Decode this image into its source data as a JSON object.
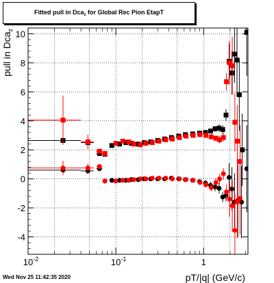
{
  "title": {
    "prefix": "Fitted pull in Dca",
    "subscript": "z",
    "suffix": " for Global Rec Pion EtapT"
  },
  "footer": "Wed Nov 25 11:42:35 2020",
  "chart_data": {
    "type": "scatter",
    "xlabel": "pT/|q| (GeV/c)",
    "ylabel": "pull in Dca",
    "ylabel_subscript": "z",
    "xscale": "log",
    "xlim": [
      0.01,
      3.2
    ],
    "ylim": [
      -5.2,
      10.4
    ],
    "grid": true,
    "x_ticks": [
      {
        "value": 0.01,
        "label": "10",
        "exp": "-2"
      },
      {
        "value": 0.1,
        "label": "10",
        "exp": "-1"
      },
      {
        "value": 1,
        "label": "1",
        "exp": ""
      }
    ],
    "y_ticks": [
      -4,
      -2,
      0,
      2,
      4,
      6,
      8,
      10
    ],
    "series": [
      {
        "color": "#000000",
        "marker": "square",
        "role": "sigma",
        "points": [
          {
            "x": 0.025,
            "y": 2.65,
            "xerr": 0.015,
            "yerr": 0.3
          },
          {
            "x": 0.048,
            "y": 2.5,
            "xerr": 0.008,
            "yerr": 0.2
          },
          {
            "x": 0.065,
            "y": 1.75,
            "xerr": 0.005,
            "yerr": 0.15
          },
          {
            "x": 0.075,
            "y": 1.7,
            "xerr": 0.004,
            "yerr": 0.15
          },
          {
            "x": 0.09,
            "y": 2.3,
            "xerr": 0.004,
            "yerr": 0.1
          },
          {
            "x": 0.11,
            "y": 2.4,
            "xerr": 0.004,
            "yerr": 0.1
          },
          {
            "x": 0.13,
            "y": 2.5,
            "xerr": 0.005,
            "yerr": 0.1
          },
          {
            "x": 0.15,
            "y": 2.45,
            "xerr": 0.005,
            "yerr": 0.1
          },
          {
            "x": 0.18,
            "y": 2.4,
            "xerr": 0.005,
            "yerr": 0.1
          },
          {
            "x": 0.21,
            "y": 2.5,
            "xerr": 0.006,
            "yerr": 0.1
          },
          {
            "x": 0.25,
            "y": 2.55,
            "xerr": 0.008,
            "yerr": 0.1
          },
          {
            "x": 0.3,
            "y": 2.65,
            "xerr": 0.009,
            "yerr": 0.1
          },
          {
            "x": 0.36,
            "y": 2.75,
            "xerr": 0.01,
            "yerr": 0.1
          },
          {
            "x": 0.43,
            "y": 2.85,
            "xerr": 0.012,
            "yerr": 0.1
          },
          {
            "x": 0.52,
            "y": 2.95,
            "xerr": 0.015,
            "yerr": 0.12
          },
          {
            "x": 0.62,
            "y": 3.05,
            "xerr": 0.018,
            "yerr": 0.12
          },
          {
            "x": 0.75,
            "y": 3.1,
            "xerr": 0.02,
            "yerr": 0.12
          },
          {
            "x": 0.9,
            "y": 3.15,
            "xerr": 0.025,
            "yerr": 0.15
          },
          {
            "x": 1.05,
            "y": 3.2,
            "xerr": 0.03,
            "yerr": 0.15
          },
          {
            "x": 1.2,
            "y": 3.3,
            "xerr": 0.03,
            "yerr": 0.15
          },
          {
            "x": 1.35,
            "y": 3.45,
            "xerr": 0.03,
            "yerr": 0.2
          },
          {
            "x": 1.5,
            "y": 3.5,
            "xerr": 0.03,
            "yerr": 0.25
          },
          {
            "x": 1.65,
            "y": 3.4,
            "xerr": 0.03,
            "yerr": 0.3
          },
          {
            "x": 1.8,
            "y": 4.4,
            "xerr": 0.03,
            "yerr": 0.4
          },
          {
            "x": 1.95,
            "y": 8.1,
            "xerr": 0.04,
            "yerr": 1.2
          },
          {
            "x": 2.1,
            "y": 7.3,
            "xerr": 0.05,
            "yerr": 1.5
          },
          {
            "x": 2.25,
            "y": 8.6,
            "xerr": 0.05,
            "yerr": 2.0
          },
          {
            "x": 2.4,
            "y": 8.2,
            "xerr": 0.05,
            "yerr": 2.5
          },
          {
            "x": 2.55,
            "y": 5.8,
            "xerr": 0.05,
            "yerr": 2.5
          },
          {
            "x": 2.75,
            "y": 2.0,
            "xerr": 0.05,
            "yerr": 2.5
          },
          {
            "x": 3.1,
            "y": 10.1,
            "xerr": 0.06,
            "yerr": 3.0
          }
        ]
      },
      {
        "color": "#000000",
        "marker": "circle",
        "role": "mean",
        "points": [
          {
            "x": 0.025,
            "y": 0.6,
            "xerr": 0.015,
            "yerr": 0.3
          },
          {
            "x": 0.048,
            "y": 0.55,
            "xerr": 0.008,
            "yerr": 0.2
          },
          {
            "x": 0.065,
            "y": 0.7,
            "xerr": 0.005,
            "yerr": 0.15
          },
          {
            "x": 0.075,
            "y": -0.15,
            "xerr": 0.004,
            "yerr": 0.1
          },
          {
            "x": 0.09,
            "y": -0.1,
            "xerr": 0.004,
            "yerr": 0.1
          },
          {
            "x": 0.11,
            "y": -0.1,
            "xerr": 0.004,
            "yerr": 0.1
          },
          {
            "x": 0.13,
            "y": -0.1,
            "xerr": 0.005,
            "yerr": 0.1
          },
          {
            "x": 0.15,
            "y": -0.05,
            "xerr": 0.005,
            "yerr": 0.1
          },
          {
            "x": 0.18,
            "y": -0.05,
            "xerr": 0.005,
            "yerr": 0.1
          },
          {
            "x": 0.21,
            "y": 0.0,
            "xerr": 0.006,
            "yerr": 0.1
          },
          {
            "x": 0.25,
            "y": 0.0,
            "xerr": 0.008,
            "yerr": 0.1
          },
          {
            "x": 0.3,
            "y": 0.0,
            "xerr": 0.009,
            "yerr": 0.1
          },
          {
            "x": 0.36,
            "y": 0.0,
            "xerr": 0.01,
            "yerr": 0.1
          },
          {
            "x": 0.43,
            "y": 0.05,
            "xerr": 0.012,
            "yerr": 0.1
          },
          {
            "x": 0.52,
            "y": 0.0,
            "xerr": 0.015,
            "yerr": 0.12
          },
          {
            "x": 0.62,
            "y": -0.05,
            "xerr": 0.018,
            "yerr": 0.12
          },
          {
            "x": 0.75,
            "y": -0.1,
            "xerr": 0.02,
            "yerr": 0.15
          },
          {
            "x": 0.9,
            "y": -0.2,
            "xerr": 0.025,
            "yerr": 0.15
          },
          {
            "x": 1.05,
            "y": -0.3,
            "xerr": 0.03,
            "yerr": 0.2
          },
          {
            "x": 1.2,
            "y": -0.45,
            "xerr": 0.03,
            "yerr": 0.25
          },
          {
            "x": 1.35,
            "y": -0.55,
            "xerr": 0.03,
            "yerr": 0.3
          },
          {
            "x": 1.5,
            "y": -0.65,
            "xerr": 0.03,
            "yerr": 0.35
          },
          {
            "x": 1.65,
            "y": -1.25,
            "xerr": 0.03,
            "yerr": 0.35
          },
          {
            "x": 1.8,
            "y": -1.15,
            "xerr": 0.03,
            "yerr": 0.4
          },
          {
            "x": 1.95,
            "y": 0.1,
            "xerr": 0.04,
            "yerr": 1.0
          },
          {
            "x": 2.1,
            "y": -0.7,
            "xerr": 0.05,
            "yerr": 1.5
          },
          {
            "x": 2.25,
            "y": -1.6,
            "xerr": 0.05,
            "yerr": 2.0
          },
          {
            "x": 2.45,
            "y": -1.5,
            "xerr": 0.05,
            "yerr": 2.5
          },
          {
            "x": 2.7,
            "y": -1.6,
            "xerr": 0.05,
            "yerr": 2.5
          },
          {
            "x": 3.1,
            "y": 0.7,
            "xerr": 0.06,
            "yerr": 3.0
          }
        ]
      },
      {
        "color": "#ff0000",
        "marker": "square",
        "role": "sigma",
        "points": [
          {
            "x": 0.025,
            "y": 4.05,
            "xerr": 0.015,
            "yerr": 1.7
          },
          {
            "x": 0.048,
            "y": 2.55,
            "xerr": 0.008,
            "yerr": 0.5
          },
          {
            "x": 0.065,
            "y": 1.9,
            "xerr": 0.005,
            "yerr": 0.2
          },
          {
            "x": 0.075,
            "y": 1.75,
            "xerr": 0.004,
            "yerr": 0.15
          },
          {
            "x": 0.1,
            "y": 2.45,
            "xerr": 0.004,
            "yerr": 0.1
          },
          {
            "x": 0.12,
            "y": 2.6,
            "xerr": 0.004,
            "yerr": 0.1
          },
          {
            "x": 0.14,
            "y": 2.55,
            "xerr": 0.005,
            "yerr": 0.1
          },
          {
            "x": 0.16,
            "y": 2.4,
            "xerr": 0.005,
            "yerr": 0.1
          },
          {
            "x": 0.19,
            "y": 2.35,
            "xerr": 0.005,
            "yerr": 0.1
          },
          {
            "x": 0.22,
            "y": 2.45,
            "xerr": 0.006,
            "yerr": 0.1
          },
          {
            "x": 0.26,
            "y": 2.5,
            "xerr": 0.008,
            "yerr": 0.1
          },
          {
            "x": 0.31,
            "y": 2.6,
            "xerr": 0.009,
            "yerr": 0.1
          },
          {
            "x": 0.37,
            "y": 2.7,
            "xerr": 0.01,
            "yerr": 0.1
          },
          {
            "x": 0.44,
            "y": 2.75,
            "xerr": 0.012,
            "yerr": 0.1
          },
          {
            "x": 0.53,
            "y": 2.85,
            "xerr": 0.015,
            "yerr": 0.12
          },
          {
            "x": 0.63,
            "y": 2.95,
            "xerr": 0.018,
            "yerr": 0.12
          },
          {
            "x": 0.76,
            "y": 3.0,
            "xerr": 0.02,
            "yerr": 0.12
          },
          {
            "x": 0.91,
            "y": 3.05,
            "xerr": 0.025,
            "yerr": 0.15
          },
          {
            "x": 1.06,
            "y": 3.0,
            "xerr": 0.03,
            "yerr": 0.15
          },
          {
            "x": 1.22,
            "y": 2.9,
            "xerr": 0.03,
            "yerr": 0.2
          },
          {
            "x": 1.38,
            "y": 2.8,
            "xerr": 0.03,
            "yerr": 0.2
          },
          {
            "x": 1.52,
            "y": 2.7,
            "xerr": 0.03,
            "yerr": 0.25
          },
          {
            "x": 1.68,
            "y": 2.85,
            "xerr": 0.03,
            "yerr": 0.3
          },
          {
            "x": 1.82,
            "y": 6.7,
            "xerr": 0.03,
            "yerr": 0.6
          },
          {
            "x": 1.97,
            "y": 8.0,
            "xerr": 0.04,
            "yerr": 1.5
          },
          {
            "x": 2.12,
            "y": 7.8,
            "xerr": 0.05,
            "yerr": 2.0
          },
          {
            "x": 2.27,
            "y": 3.9,
            "xerr": 0.05,
            "yerr": 2.0
          },
          {
            "x": 2.42,
            "y": 2.6,
            "xerr": 0.05,
            "yerr": 2.5
          },
          {
            "x": 2.6,
            "y": 1.2,
            "xerr": 0.05,
            "yerr": 2.5
          }
        ]
      },
      {
        "color": "#ff0000",
        "marker": "circle",
        "role": "mean",
        "points": [
          {
            "x": 0.025,
            "y": 0.75,
            "xerr": 0.015,
            "yerr": 0.5
          },
          {
            "x": 0.048,
            "y": 0.75,
            "xerr": 0.008,
            "yerr": 0.3
          },
          {
            "x": 0.065,
            "y": 0.85,
            "xerr": 0.005,
            "yerr": 0.15
          },
          {
            "x": 0.075,
            "y": -0.15,
            "xerr": 0.004,
            "yerr": 0.1
          },
          {
            "x": 0.1,
            "y": -0.15,
            "xerr": 0.004,
            "yerr": 0.1
          },
          {
            "x": 0.12,
            "y": -0.1,
            "xerr": 0.004,
            "yerr": 0.1
          },
          {
            "x": 0.14,
            "y": -0.1,
            "xerr": 0.005,
            "yerr": 0.1
          },
          {
            "x": 0.16,
            "y": -0.05,
            "xerr": 0.005,
            "yerr": 0.1
          },
          {
            "x": 0.19,
            "y": 0.0,
            "xerr": 0.005,
            "yerr": 0.1
          },
          {
            "x": 0.22,
            "y": 0.0,
            "xerr": 0.006,
            "yerr": 0.1
          },
          {
            "x": 0.26,
            "y": 0.05,
            "xerr": 0.008,
            "yerr": 0.1
          },
          {
            "x": 0.31,
            "y": 0.05,
            "xerr": 0.009,
            "yerr": 0.1
          },
          {
            "x": 0.37,
            "y": 0.05,
            "xerr": 0.01,
            "yerr": 0.1
          },
          {
            "x": 0.44,
            "y": 0.0,
            "xerr": 0.012,
            "yerr": 0.1
          },
          {
            "x": 0.53,
            "y": 0.0,
            "xerr": 0.015,
            "yerr": 0.12
          },
          {
            "x": 0.63,
            "y": -0.05,
            "xerr": 0.018,
            "yerr": 0.12
          },
          {
            "x": 0.76,
            "y": -0.1,
            "xerr": 0.02,
            "yerr": 0.15
          },
          {
            "x": 0.91,
            "y": -0.25,
            "xerr": 0.025,
            "yerr": 0.15
          },
          {
            "x": 1.06,
            "y": -0.4,
            "xerr": 0.03,
            "yerr": 0.2
          },
          {
            "x": 1.22,
            "y": -0.6,
            "xerr": 0.03,
            "yerr": 0.25
          },
          {
            "x": 1.38,
            "y": -0.25,
            "xerr": 0.03,
            "yerr": 0.3
          },
          {
            "x": 1.52,
            "y": 0.0,
            "xerr": 0.03,
            "yerr": 0.35
          },
          {
            "x": 1.68,
            "y": 0.35,
            "xerr": 0.03,
            "yerr": 0.4
          },
          {
            "x": 1.82,
            "y": -0.9,
            "xerr": 0.03,
            "yerr": 0.5
          },
          {
            "x": 1.97,
            "y": -1.4,
            "xerr": 0.04,
            "yerr": 1.2
          },
          {
            "x": 2.12,
            "y": -1.85,
            "xerr": 0.05,
            "yerr": 1.8
          },
          {
            "x": 2.27,
            "y": -3.55,
            "xerr": 0.05,
            "yerr": 2.5
          },
          {
            "x": 2.42,
            "y": -1.6,
            "xerr": 0.05,
            "yerr": 2.5
          },
          {
            "x": 2.6,
            "y": -1.35,
            "xerr": 0.05,
            "yerr": 2.5
          }
        ]
      }
    ]
  }
}
